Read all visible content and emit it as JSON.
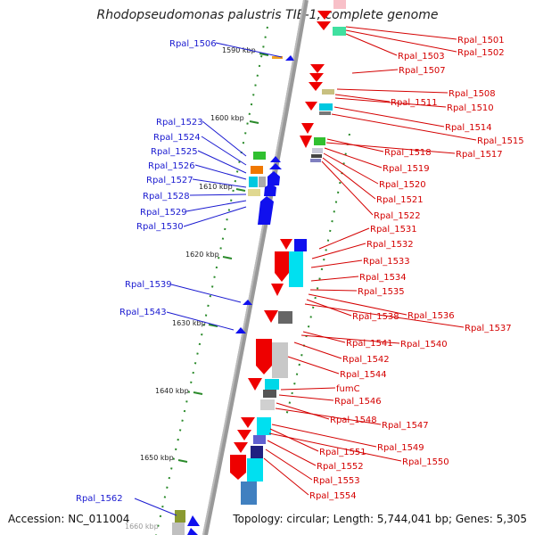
{
  "title": "Rhodopseudomonas palustris TIE-1, complete genome",
  "accession_label": "Accession: NC_011004",
  "summary_label": "Topology: circular; Length: 5,744,041 bp; Genes: 5,305",
  "ticks": [
    "1590 kbp",
    "1600 kbp",
    "1610 kbp",
    "1620 kbp",
    "1630 kbp",
    "1640 kbp",
    "1650 kbp",
    "1660 kbp"
  ],
  "left_labels": [
    "Rpal_1506",
    "Rpal_1523",
    "Rpal_1524",
    "Rpal_1525",
    "Rpal_1526",
    "Rpal_1527",
    "Rpal_1528",
    "Rpal_1529",
    "Rpal_1530",
    "Rpal_1539",
    "Rpal_1543",
    "Rpal_1562"
  ],
  "right_labels": [
    "Rpal_1501",
    "Rpal_1502",
    "Rpal_1503",
    "Rpal_1507",
    "Rpal_1508",
    "Rpal_1511",
    "Rpal_1510",
    "Rpal_1514",
    "Rpal_1515",
    "Rpal_1518",
    "Rpal_1517",
    "Rpal_1519",
    "Rpal_1520",
    "Rpal_1521",
    "Rpal_1522",
    "Rpal_1531",
    "Rpal_1532",
    "Rpal_1533",
    "Rpal_1534",
    "Rpal_1535",
    "Rpal_1536",
    "Rpal_1538",
    "Rpal_1537",
    "Rpal_1541",
    "Rpal_1540",
    "Rpal_1542",
    "Rpal_1544",
    "fumC",
    "Rpal_1546",
    "Rpal_1548",
    "Rpal_1547",
    "Rpal_1549",
    "Rpal_1551",
    "Rpal_1550",
    "Rpal_1552",
    "Rpal_1553",
    "Rpal_1554"
  ],
  "colors": {
    "forward_strand": "#ee0000",
    "reverse_strand": "#0000ee",
    "left_label": "#1a1ad0",
    "right_label": "#d40000",
    "backbone": "#999999",
    "tick": "#2a8a2a"
  }
}
